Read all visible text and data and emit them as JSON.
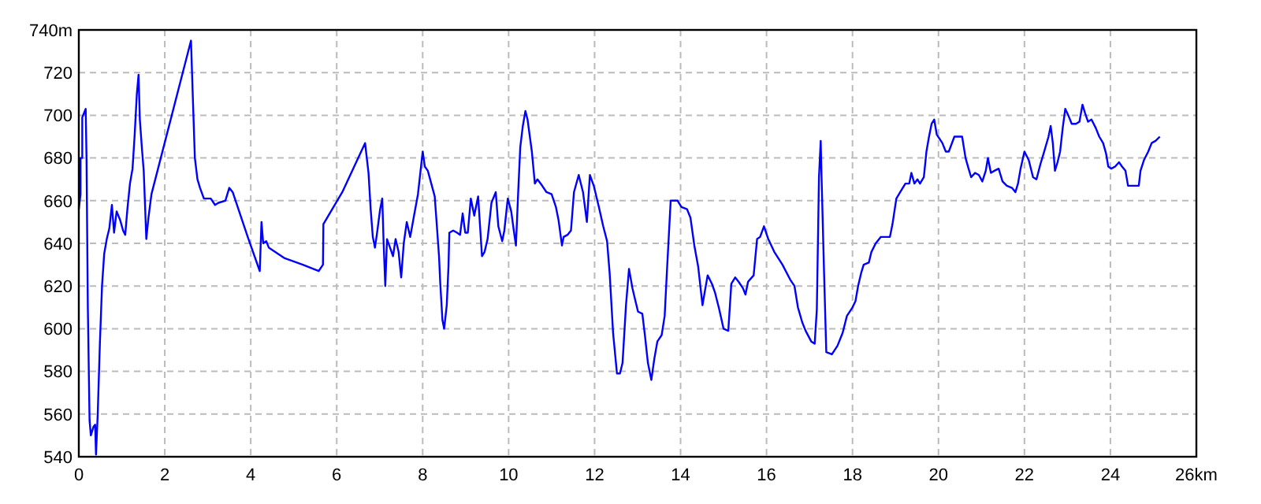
{
  "chart_data": {
    "type": "line",
    "color": "#0000ff",
    "grid": true,
    "xlim": [
      0,
      26
    ],
    "xticks": [
      0,
      2,
      4,
      6,
      8,
      10,
      12,
      14,
      16,
      18,
      20,
      22,
      24,
      {
        "value": 26,
        "label": "26km"
      }
    ],
    "ylim": [
      540,
      740
    ],
    "yticks": [
      540,
      560,
      580,
      600,
      620,
      640,
      660,
      680,
      700,
      720,
      {
        "value": 740,
        "label": "740m"
      }
    ],
    "x": [
      0,
      0.04,
      0.04,
      0.08,
      0.08,
      0.16,
      0.18,
      0.21,
      0.25,
      0.28,
      0.34,
      0.38,
      0.4,
      0.44,
      0.49,
      0.54,
      0.59,
      0.65,
      0.71,
      0.77,
      0.82,
      0.88,
      0.96,
      1.03,
      1.08,
      1.13,
      1.19,
      1.25,
      1.3,
      1.35,
      1.39,
      1.42,
      1.47,
      1.51,
      1.55,
      1.57,
      1.62,
      1.69,
      2.61,
      2.65,
      2.7,
      2.76,
      2.82,
      2.91,
      3.07,
      3.17,
      3.25,
      3.41,
      3.5,
      3.58,
      3.93,
      4.21,
      4.25,
      4.29,
      4.36,
      4.42,
      4.79,
      5.21,
      5.58,
      5.68,
      5.69,
      6.13,
      6.66,
      6.74,
      6.79,
      6.84,
      6.89,
      6.94,
      7.01,
      7.06,
      7.09,
      7.13,
      7.17,
      7.24,
      7.31,
      7.37,
      7.44,
      7.5,
      7.56,
      7.63,
      7.71,
      7.79,
      7.89,
      8,
      8.05,
      8.12,
      8.2,
      8.28,
      8.32,
      8.38,
      8.41,
      8.46,
      8.5,
      8.56,
      8.6,
      8.62,
      8.71,
      8.8,
      8.87,
      8.93,
      8.99,
      9.05,
      9.12,
      9.2,
      9.29,
      9.38,
      9.44,
      9.51,
      9.6,
      9.7,
      9.76,
      9.85,
      9.9,
      9.98,
      10.06,
      10.12,
      10.17,
      10.22,
      10.27,
      10.33,
      10.39,
      10.44,
      10.54,
      10.61,
      10.67,
      10.78,
      10.88,
      11,
      11.1,
      11.16,
      11.24,
      11.28,
      11.37,
      11.45,
      11.52,
      11.63,
      11.73,
      11.82,
      11.89,
      11.98,
      12.1,
      12.2,
      12.29,
      12.35,
      12.43,
      12.52,
      12.59,
      12.65,
      12.73,
      12.8,
      12.88,
      12.95,
      13.01,
      13.11,
      13.17,
      13.24,
      13.32,
      13.39,
      13.46,
      13.56,
      13.63,
      13.68,
      13.77,
      13.93,
      14.02,
      14.15,
      14.23,
      14.32,
      14.41,
      14.51,
      14.56,
      14.63,
      14.73,
      14.8,
      14.9,
      15,
      15.11,
      15.18,
      15.27,
      15.35,
      15.45,
      15.51,
      15.57,
      15.7,
      15.78,
      15.85,
      15.94,
      16.04,
      16.18,
      16.37,
      16.55,
      16.65,
      16.73,
      16.83,
      16.91,
      17.04,
      17.12,
      17.17,
      17.22,
      17.26,
      17.28,
      17.34,
      17.39,
      17.52,
      17.65,
      17.77,
      17.87,
      18,
      18.07,
      18.13,
      18.2,
      18.26,
      18.38,
      18.44,
      18.54,
      18.66,
      18.78,
      18.87,
      18.93,
      19.02,
      19.11,
      19.23,
      19.32,
      19.37,
      19.44,
      19.51,
      19.57,
      19.66,
      19.72,
      19.78,
      19.84,
      19.9,
      19.96,
      20.09,
      20.17,
      20.24,
      20.37,
      20.49,
      20.55,
      20.63,
      20.7,
      20.76,
      20.85,
      20.94,
      21.02,
      21.1,
      21.15,
      21.22,
      21.3,
      21.4,
      21.49,
      21.59,
      21.71,
      21.79,
      21.85,
      21.91,
      22,
      22.1,
      22.2,
      22.28,
      22.37,
      22.46,
      22.56,
      22.61,
      22.66,
      22.71,
      22.77,
      22.83,
      22.89,
      22.95,
      23.02,
      23.1,
      23.2,
      23.28,
      23.35,
      23.41,
      23.48,
      23.56,
      23.66,
      23.74,
      23.83,
      23.9,
      23.95,
      24.02,
      24.11,
      24.2,
      24.27,
      24.35,
      24.41,
      24.66,
      24.7,
      24.78,
      24.88,
      24.96,
      25.05,
      25.15
    ],
    "values": [
      656,
      663,
      680,
      680,
      699,
      703,
      679,
      610,
      557,
      550,
      554,
      555,
      541,
      560,
      593,
      620,
      635,
      642,
      647,
      658,
      645,
      655,
      651,
      646,
      644,
      656,
      668,
      675,
      691,
      710,
      719,
      698,
      684,
      674,
      653,
      642,
      652,
      663,
      735,
      710,
      680,
      670,
      666,
      661,
      661,
      658,
      659,
      660,
      666,
      664,
      643,
      627,
      650,
      640,
      641,
      638,
      633,
      630,
      627,
      630,
      649,
      664,
      687,
      673,
      656,
      643,
      638,
      645,
      656,
      661,
      641,
      620,
      642,
      638,
      634,
      642,
      636,
      624,
      640,
      650,
      643,
      652,
      663,
      683,
      676,
      674,
      668,
      662,
      651,
      634,
      621,
      604,
      600,
      611,
      629,
      645,
      646,
      645,
      644,
      654,
      645,
      645,
      661,
      653,
      662,
      634,
      636,
      642,
      659,
      664,
      648,
      641,
      646,
      661,
      655,
      646,
      639,
      663,
      685,
      695,
      702,
      698,
      683,
      668,
      670,
      667,
      664,
      663,
      657,
      651,
      639,
      643,
      644,
      646,
      664,
      672,
      664,
      650,
      672,
      667,
      657,
      648,
      641,
      626,
      598,
      579,
      579,
      584,
      611,
      628,
      619,
      613,
      608,
      607,
      597,
      584,
      576,
      586,
      594,
      597,
      606,
      626,
      660,
      660,
      657,
      656,
      652,
      639,
      629,
      611,
      617,
      625,
      621,
      617,
      609,
      600,
      599,
      621,
      624,
      622,
      619,
      616,
      622,
      625,
      642,
      643,
      648,
      642,
      636,
      630,
      623,
      620,
      610,
      603,
      599,
      594,
      593,
      609,
      671,
      688,
      671,
      625,
      589,
      588,
      592,
      598,
      606,
      610,
      613,
      620,
      626,
      630,
      631,
      636,
      640,
      643,
      643,
      643,
      649,
      661,
      664,
      668,
      668,
      673,
      668,
      670,
      668,
      671,
      683,
      690,
      696,
      698,
      691,
      687,
      683,
      683,
      690,
      690,
      690,
      680,
      675,
      671,
      673,
      672,
      669,
      674,
      680,
      673,
      674,
      675,
      669,
      667,
      666,
      664,
      668,
      675,
      683,
      679,
      671,
      670,
      677,
      683,
      690,
      695,
      687,
      674,
      678,
      683,
      694,
      703,
      700,
      696,
      696,
      697,
      705,
      701,
      697,
      698,
      694,
      690,
      687,
      682,
      676,
      675,
      676,
      678,
      676,
      674,
      667,
      667,
      674,
      679,
      683,
      687,
      688,
      690
    ]
  }
}
